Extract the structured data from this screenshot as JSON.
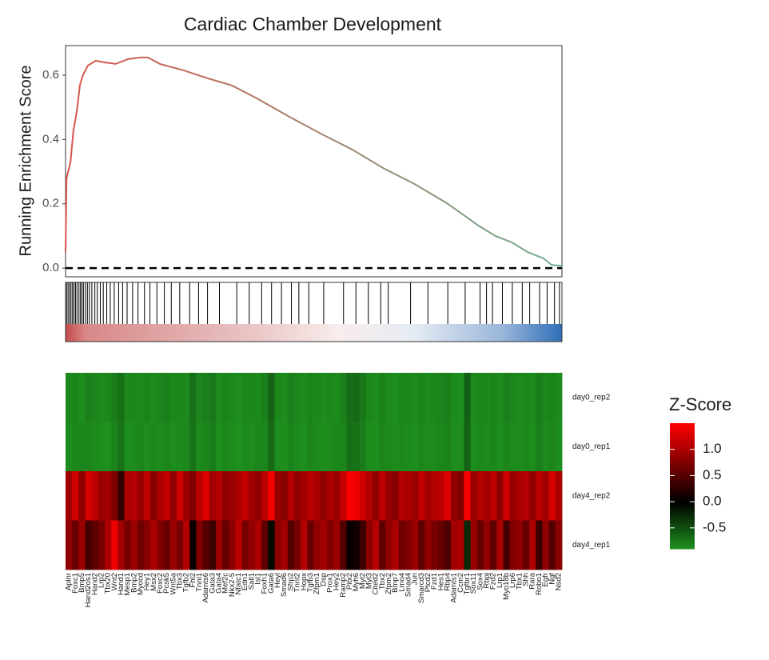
{
  "chart_data": [
    {
      "type": "line",
      "title": "Cardiac Chamber Development",
      "y_label": "Running Enrichment Score",
      "x": [
        0,
        0.2,
        1,
        1.6,
        2.3,
        2.9,
        3.5,
        4.5,
        6.1,
        7.7,
        10.1,
        12.6,
        15,
        16.6,
        19,
        23.8,
        28.7,
        33.5,
        38.3,
        44.8,
        51.2,
        57.6,
        64.1,
        70.5,
        77,
        83.4,
        86.6,
        89.9,
        93.1,
        96.3,
        97.9,
        100
      ],
      "series": [
        {
          "colors": [
            "#d9544a",
            "#6fae90"
          ],
          "values": [
            0.05,
            0.28,
            0.33,
            0.43,
            0.49,
            0.57,
            0.6,
            0.63,
            0.645,
            0.64,
            0.635,
            0.65,
            0.655,
            0.655,
            0.635,
            0.615,
            0.59,
            0.568,
            0.53,
            0.473,
            0.42,
            0.37,
            0.31,
            0.26,
            0.2,
            0.13,
            0.1,
            0.08,
            0.05,
            0.03,
            0.01,
            0.007
          ]
        }
      ],
      "xlim": [
        0,
        100
      ],
      "ylim": [
        -0.027,
        0.692
      ],
      "yticks": [
        {
          "value": 0,
          "label": "0.0"
        },
        0.2,
        0.4,
        0.6
      ],
      "hline": 0,
      "hits": [
        0.2,
        0.5,
        0.8,
        1.1,
        1.4,
        1.7,
        2.0,
        2.3,
        2.7,
        3.0,
        3.3,
        3.6,
        4.0,
        4.4,
        4.8,
        5.3,
        5.9,
        6.4,
        7.0,
        7.6,
        8.3,
        9.0,
        9.8,
        10.7,
        11.5,
        12.4,
        13.5,
        14.6,
        15.9,
        17.0,
        18.4,
        19.9,
        21.3,
        23.0,
        25.0,
        26.8,
        28.6,
        31.0,
        34.5,
        37.0,
        39.5,
        41.5,
        43.5,
        45.5,
        47.0,
        49.0,
        52.0,
        56.0,
        58.5,
        61.0,
        63.5,
        65.0,
        69.5,
        73.0,
        77.0,
        80.5,
        83.5,
        84.8,
        86.0,
        88.0,
        90.0,
        92.0,
        93.5,
        95.5,
        97.0,
        98.5,
        99.5
      ]
    },
    {
      "type": "heatmap",
      "legend_title": "Z-Score",
      "rows": [
        "day0_rep2",
        "day0_rep1",
        "day4_rep2",
        "day4_rep1"
      ],
      "columns": [
        "Aplnr",
        "Foxc1",
        "Bmp5",
        "Hand2os1",
        "Hand2",
        "Lrp2",
        "Tbx20",
        "Wnt2",
        "Hand1",
        "Mesp1",
        "Bmp2",
        "Myocd",
        "Hey1",
        "Msx2",
        "Foxc2",
        "Pcsk5",
        "Wnt5a",
        "Tbx3",
        "Tgfb2",
        "Fhl2",
        "Tnni1",
        "Adamts6",
        "Gata3",
        "Gata4",
        "Mef2c",
        "Nkx2-5",
        "Nfatc1",
        "Edn1",
        "Sall1",
        "Isl1",
        "Foxh1",
        "Gata6",
        "Heyl",
        "Smad6",
        "Sfrp2",
        "Tnnt2",
        "Hopx",
        "Tgfb3",
        "Zfpm1",
        "Dsp",
        "Prox1",
        "Hey2",
        "Ramp2",
        "Pitx2",
        "Myh6",
        "Myl2",
        "Myl3",
        "Cited2",
        "Tbx2",
        "Zfpm2",
        "Bmp7",
        "Lmo4",
        "Smad4",
        "Jun",
        "Smarcd3",
        "Ptcd2",
        "Fzd1",
        "Hes1",
        "Rbp4",
        "Adamts1",
        "Ccm2",
        "Tgfbr1",
        "Sox11",
        "Sox4",
        "Rbpj",
        "Fzd2",
        "Lrp1",
        "Myo18b",
        "Lrp6",
        "Tbx1",
        "Shh",
        "Rara",
        "Robo1",
        "Egfr",
        "Ngf",
        "Nsd2"
      ],
      "values": [
        [
          -0.85,
          -0.82,
          -0.88,
          -0.8,
          -0.84,
          -0.86,
          -0.83,
          -0.78,
          -0.7,
          -0.85,
          -0.84,
          -0.86,
          -0.82,
          -0.87,
          -0.83,
          -0.8,
          -0.85,
          -0.84,
          -0.86,
          -0.7,
          -0.83,
          -0.8,
          -0.75,
          -0.86,
          -0.82,
          -0.85,
          -0.88,
          -0.84,
          -0.83,
          -0.86,
          -0.8,
          -0.62,
          -0.85,
          -0.87,
          -0.8,
          -0.83,
          -0.86,
          -0.82,
          -0.85,
          -0.87,
          -0.84,
          -0.86,
          -0.8,
          -0.68,
          -0.66,
          -0.75,
          -0.85,
          -0.87,
          -0.81,
          -0.86,
          -0.88,
          -0.83,
          -0.85,
          -0.86,
          -0.82,
          -0.87,
          -0.84,
          -0.82,
          -0.8,
          -0.86,
          -0.88,
          -0.6,
          -0.86,
          -0.83,
          -0.85,
          -0.82,
          -0.87,
          -0.8,
          -0.84,
          -0.86,
          -0.83,
          -0.87,
          -0.78,
          -0.85,
          -0.82,
          -0.86
        ],
        [
          -0.87,
          -0.85,
          -0.84,
          -0.83,
          -0.86,
          -0.88,
          -0.9,
          -0.82,
          -0.72,
          -0.88,
          -0.86,
          -0.84,
          -0.87,
          -0.85,
          -0.86,
          -0.83,
          -0.88,
          -0.86,
          -0.85,
          -0.72,
          -0.86,
          -0.84,
          -0.78,
          -0.88,
          -0.85,
          -0.87,
          -0.9,
          -0.86,
          -0.87,
          -0.84,
          -0.83,
          -0.66,
          -0.87,
          -0.88,
          -0.82,
          -0.86,
          -0.89,
          -0.84,
          -0.86,
          -0.88,
          -0.87,
          -0.85,
          -0.83,
          -0.7,
          -0.72,
          -0.78,
          -0.88,
          -0.89,
          -0.84,
          -0.85,
          -0.87,
          -0.85,
          -0.86,
          -0.88,
          -0.84,
          -0.87,
          -0.86,
          -0.84,
          -0.82,
          -0.88,
          -0.87,
          -0.62,
          -0.88,
          -0.85,
          -0.86,
          -0.84,
          -0.89,
          -0.83,
          -0.86,
          -0.87,
          -0.85,
          -0.88,
          -0.8,
          -0.87,
          -0.84,
          -0.88
        ],
        [
          0.95,
          1.2,
          0.85,
          1.25,
          1.1,
          0.9,
          0.95,
          0.75,
          0.3,
          1.0,
          1.05,
          0.9,
          1.1,
          0.8,
          1.0,
          1.15,
          0.85,
          1.2,
          0.9,
          0.75,
          1.1,
          1.3,
          0.95,
          1.05,
          0.85,
          0.9,
          1.0,
          1.15,
          0.95,
          0.85,
          1.1,
          1.45,
          0.9,
          0.8,
          1.05,
          0.85,
          0.95,
          1.1,
          1.0,
          0.85,
          1.0,
          0.9,
          1.15,
          1.45,
          1.4,
          1.2,
          1.05,
          0.85,
          1.1,
          0.9,
          0.8,
          1.05,
          1.0,
          0.9,
          1.15,
          0.95,
          1.05,
          1.1,
          1.3,
          0.85,
          0.75,
          1.45,
          0.9,
          1.05,
          0.95,
          1.1,
          0.85,
          1.2,
          0.9,
          1.0,
          1.05,
          0.85,
          1.1,
          0.95,
          1.25,
          1.0
        ],
        [
          0.85,
          0.6,
          0.9,
          0.4,
          0.55,
          0.7,
          1.0,
          1.4,
          0.95,
          0.7,
          0.9,
          0.65,
          0.8,
          1.0,
          0.75,
          0.6,
          0.9,
          0.7,
          1.05,
          0.05,
          0.75,
          0.5,
          0.35,
          0.9,
          0.6,
          0.8,
          1.1,
          0.7,
          0.85,
          1.0,
          0.55,
          -0.05,
          0.8,
          0.95,
          0.5,
          0.7,
          1.05,
          0.6,
          0.85,
          0.95,
          0.75,
          0.9,
          0.5,
          0.05,
          0.1,
          0.35,
          0.8,
          1.05,
          0.55,
          0.85,
          1.0,
          0.65,
          0.75,
          0.9,
          0.55,
          0.85,
          0.7,
          0.6,
          0.45,
          0.95,
          1.0,
          -0.25,
          0.9,
          0.6,
          0.85,
          0.55,
          1.0,
          0.4,
          0.75,
          0.85,
          0.6,
          1.0,
          0.35,
          0.85,
          0.5,
          0.8
        ]
      ],
      "colors": [
        "#1e901e",
        "#000000",
        "#ff0000"
      ],
      "zlim": [
        -0.9,
        1.5
      ],
      "zticks": [
        {
          "value": 1,
          "label": "1.0"
        },
        0.5,
        {
          "value": 0,
          "label": "0.0"
        },
        -0.5
      ]
    }
  ]
}
